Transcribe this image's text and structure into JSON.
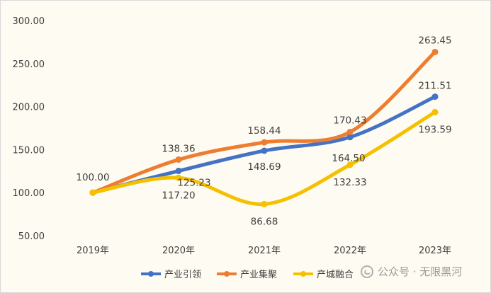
{
  "chart_data": {
    "type": "line",
    "categories": [
      "2019年",
      "2020年",
      "2021年",
      "2022年",
      "2023年"
    ],
    "y_ticks": [
      "50.00",
      "100.00",
      "150.00",
      "200.00",
      "250.00",
      "300.00"
    ],
    "ylim": [
      50,
      300
    ],
    "grid": false,
    "legend_position": "bottom",
    "series": [
      {
        "name": "产业引领",
        "color": "#4472c4",
        "values": [
          100.0,
          125.23,
          148.69,
          164.5,
          211.51
        ],
        "labels": [
          "",
          "125.23",
          "148.69",
          "164.50",
          "211.51"
        ]
      },
      {
        "name": "产业集聚",
        "color": "#ed7d31",
        "values": [
          100.0,
          138.36,
          158.44,
          170.43,
          263.45
        ],
        "labels": [
          "100.00",
          "138.36",
          "158.44",
          "170.43",
          "263.45"
        ]
      },
      {
        "name": "产城融合",
        "color": "#f5c000",
        "values": [
          100.0,
          117.2,
          86.68,
          132.33,
          193.59
        ],
        "labels": [
          "",
          "117.20",
          "86.68",
          "132.33",
          "193.59"
        ]
      }
    ]
  },
  "watermark": {
    "icon": "wechat-icon",
    "text": "公众号 · 无限黑河"
  }
}
